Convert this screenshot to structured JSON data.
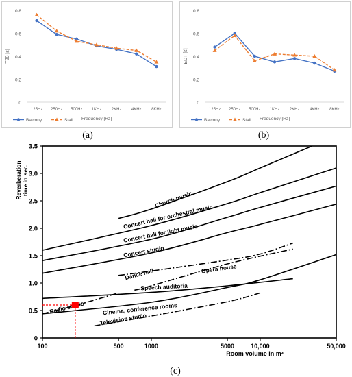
{
  "captions": {
    "a": "(a)",
    "b": "(b)",
    "c": "(c)"
  },
  "chart_data": [
    {
      "type": "line",
      "ylabel": "T20 [s]",
      "xlabel": "Frequency [Hz]",
      "categories": [
        "125Hz",
        "250Hz",
        "500Hz",
        "1KHz",
        "2KHz",
        "4KHz",
        "8KHz"
      ],
      "ylim": [
        0,
        0.8
      ],
      "yticks": [
        "0",
        "0.2",
        "0.4",
        "0.6",
        "0.8"
      ],
      "legend": "bottom-left",
      "series": [
        {
          "name": "Balcony",
          "values": [
            0.71,
            0.59,
            0.55,
            0.49,
            0.46,
            0.42,
            0.31
          ],
          "color": "#4472c4"
        },
        {
          "name": "Stall",
          "values": [
            0.76,
            0.62,
            0.53,
            0.5,
            0.47,
            0.45,
            0.35
          ],
          "color": "#ed7d31"
        }
      ]
    },
    {
      "type": "line",
      "ylabel": "EDT [s]",
      "xlabel": "Frequency [Hz]",
      "categories": [
        "125Hz",
        "250Hz",
        "500Hz",
        "1KHz",
        "2KHz",
        "4KHz",
        "8KHz"
      ],
      "ylim": [
        0,
        0.8
      ],
      "yticks": [
        "0",
        "0.2",
        "0.4",
        "0.6",
        "0.8"
      ],
      "legend": "bottom-left",
      "series": [
        {
          "name": "Balcony",
          "values": [
            0.48,
            0.6,
            0.4,
            0.35,
            0.38,
            0.34,
            0.27
          ],
          "color": "#4472c4"
        },
        {
          "name": "Stall",
          "values": [
            0.45,
            0.58,
            0.36,
            0.42,
            0.41,
            0.4,
            0.28
          ],
          "color": "#ed7d31"
        }
      ]
    },
    {
      "type": "line",
      "ylabel_lines": [
        "Reverberation",
        "time in sec."
      ],
      "xlabel": "Room volume in m³",
      "xscale": "log",
      "xlim": [
        100,
        50000
      ],
      "ylim": [
        0,
        3.5
      ],
      "xticks": [
        100,
        500,
        1000,
        5000,
        10000,
        50000
      ],
      "xtick_labels": [
        "100",
        "500",
        "1000",
        "5000",
        "10,000",
        "50,000"
      ],
      "yticks": [
        "0",
        "0.5",
        "1.0",
        "1.5",
        "2.0",
        "2.5",
        "3.0",
        "3.5"
      ],
      "point": {
        "x": 200,
        "y": 0.6,
        "color": "#ff0000"
      },
      "series": [
        {
          "name": "Church music",
          "style": "solid",
          "x": [
            500,
            1000,
            5000,
            10000,
            30000
          ],
          "y": [
            2.18,
            2.35,
            2.85,
            3.1,
            3.5
          ],
          "label_at": [
            1100,
            2.37
          ]
        },
        {
          "name": "Concert hall for orchestral music",
          "style": "solid",
          "x": [
            100,
            1000,
            5000,
            10000,
            50000
          ],
          "y": [
            1.6,
            2.05,
            2.45,
            2.65,
            3.1
          ],
          "label_at": [
            560,
            1.99
          ]
        },
        {
          "name": "Concert hall for light music",
          "style": "solid",
          "x": [
            100,
            1000,
            5000,
            10000,
            50000
          ],
          "y": [
            1.41,
            1.8,
            2.2,
            2.38,
            2.77
          ],
          "label_at": [
            560,
            1.74
          ]
        },
        {
          "name": "Concert studio",
          "style": "solid",
          "x": [
            100,
            1000,
            5000,
            10000,
            50000
          ],
          "y": [
            1.18,
            1.55,
            1.92,
            2.07,
            2.44
          ],
          "label_at": [
            560,
            1.47
          ]
        },
        {
          "name": "Opera house",
          "style": "dashdot",
          "x": [
            500,
            1000,
            5000,
            10000,
            20000
          ],
          "y": [
            1.14,
            1.22,
            1.42,
            1.53,
            1.73
          ],
          "label_at": [
            2900,
            1.18
          ]
        },
        {
          "name": "Dance hall",
          "style": "dashdot",
          "x": [
            700,
            1000,
            5000,
            20000
          ],
          "y": [
            0.87,
            0.95,
            1.35,
            1.62
          ],
          "label_at": [
            580,
            1.06
          ]
        },
        {
          "name": "Speech auditoria",
          "style": "solid",
          "x": [
            100,
            1000,
            5000,
            20000
          ],
          "y": [
            0.72,
            0.83,
            0.95,
            1.08
          ],
          "label_at": [
            800,
            0.87
          ]
        },
        {
          "name": "Cinema, conference rooms",
          "style": "solid",
          "x": [
            100,
            1000,
            5000,
            10000,
            50000
          ],
          "y": [
            0.44,
            0.65,
            0.92,
            1.06,
            1.52
          ],
          "label_at": [
            360,
            0.42
          ]
        },
        {
          "name": "Television studio",
          "style": "dashdot",
          "x": [
            300,
            1000,
            5000,
            10000
          ],
          "y": [
            0.22,
            0.4,
            0.66,
            0.82
          ],
          "label_at": [
            340,
            0.23
          ]
        },
        {
          "name": "Radio studio",
          "style": "dashdot",
          "x": [
            100,
            200,
            500
          ],
          "y": [
            0.44,
            0.59,
            0.82
          ],
          "label_at": [
            118,
            0.44
          ]
        }
      ]
    }
  ]
}
